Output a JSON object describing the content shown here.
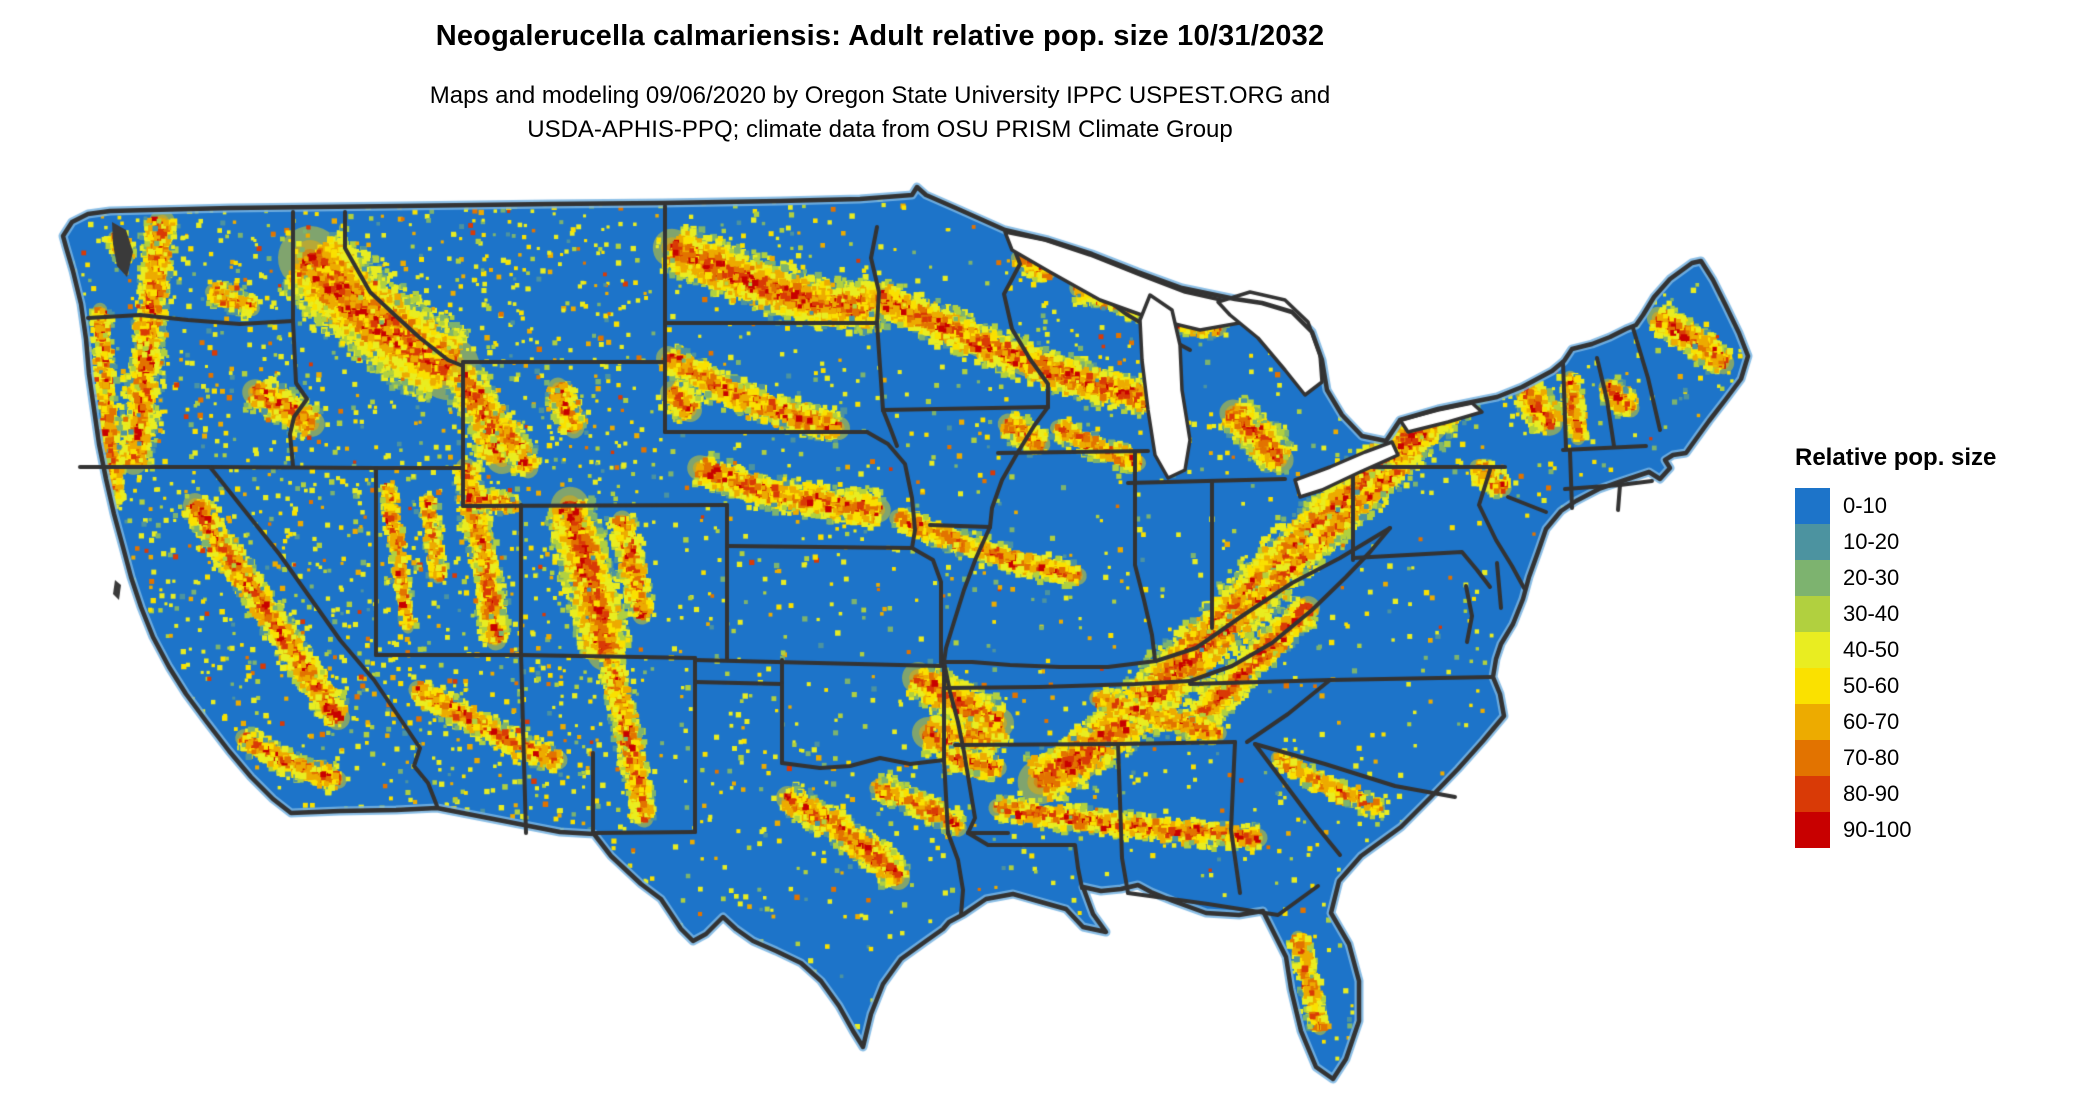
{
  "header": {
    "title": "Neogalerucella calmariensis: Adult relative pop. size 10/31/2032",
    "subtitle_line1": "Maps and modeling 09/06/2020 by Oregon State University IPPC USPEST.ORG and",
    "subtitle_line2": "USDA-APHIS-PPQ; climate data from OSU PRISM Climate Group"
  },
  "legend": {
    "title": "Relative pop. size",
    "items": [
      {
        "label": "0-10",
        "color": "#1d74c9"
      },
      {
        "label": "10-20",
        "color": "#4c93a0"
      },
      {
        "label": "20-30",
        "color": "#7db36f"
      },
      {
        "label": "30-40",
        "color": "#b1d03f"
      },
      {
        "label": "40-50",
        "color": "#e9ed21"
      },
      {
        "label": "50-60",
        "color": "#fae100"
      },
      {
        "label": "60-70",
        "color": "#edab00"
      },
      {
        "label": "70-80",
        "color": "#e27300"
      },
      {
        "label": "80-90",
        "color": "#d93a06"
      },
      {
        "label": "90-100",
        "color": "#c80000"
      }
    ]
  },
  "map": {
    "region": "Contiguous United States",
    "base_color": "#1d74c9",
    "border_color": "#333333",
    "water_color": "#ffffff",
    "coast_halo_color": "#79b5e3"
  },
  "chart_data": {
    "type": "heatmap",
    "title": "Neogalerucella calmariensis: Adult relative pop. size 10/31/2032",
    "subtitle": "Maps and modeling 09/06/2020 by Oregon State University IPPC USPEST.ORG and USDA-APHIS-PPQ; climate data from OSU PRISM Climate Group",
    "legend_title": "Relative pop. size",
    "legend_position": "right",
    "categories": [
      "0-10",
      "10-20",
      "20-30",
      "30-40",
      "40-50",
      "50-60",
      "60-70",
      "70-80",
      "80-90",
      "90-100"
    ],
    "colors": [
      "#1d74c9",
      "#4c93a0",
      "#7db36f",
      "#b1d03f",
      "#e9ed21",
      "#fae100",
      "#edab00",
      "#e27300",
      "#d93a06",
      "#c80000"
    ],
    "region": "Contiguous United States raster; predominant class 0-10 (blue) with higher classes (yellow-orange-red) concentrated along mountain ranges and terrain bands; state borders dark gray; Great Lakes shown white"
  }
}
